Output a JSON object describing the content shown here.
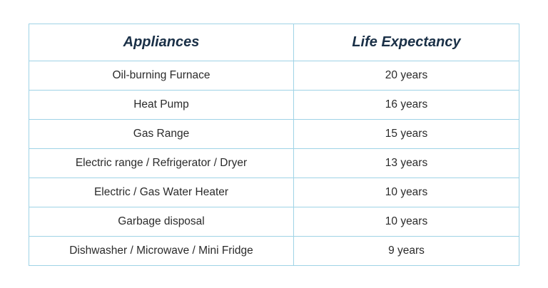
{
  "table": {
    "headers": [
      "Appliances",
      "Life Expectancy"
    ],
    "rows": [
      [
        "Oil-burning Furnace",
        "20 years"
      ],
      [
        "Heat Pump",
        "16 years"
      ],
      [
        "Gas Range",
        "15 years"
      ],
      [
        "Electric range / Refrigerator / Dryer",
        "13 years"
      ],
      [
        "Electric / Gas Water Heater",
        "10 years"
      ],
      [
        "Garbage disposal",
        "10 years"
      ],
      [
        "Dishwasher / Microwave / Mini Fridge",
        "9 years"
      ]
    ]
  },
  "colors": {
    "border": "#9fd3e6",
    "header_text": "#1a3047",
    "body_text": "#2b2b2b"
  }
}
